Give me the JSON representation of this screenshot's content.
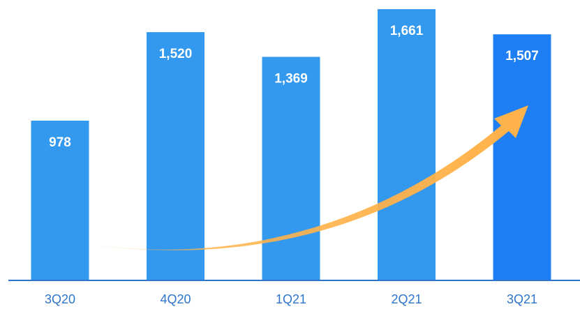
{
  "chart_data": {
    "type": "bar",
    "categories": [
      "3Q20",
      "4Q20",
      "1Q21",
      "2Q21",
      "3Q21"
    ],
    "values": [
      978,
      1520,
      1369,
      1661,
      1507
    ],
    "value_labels": [
      "978",
      "1,520",
      "1,369",
      "1,661",
      "1,507"
    ],
    "title": "",
    "xlabel": "",
    "ylabel": "",
    "ylim": [
      0,
      1700
    ],
    "grid": false,
    "legend": "none",
    "annotation": "upward-trend-arrow",
    "colors": {
      "bar": "#3399ee",
      "bar_highlight": "#1e7ff5",
      "axis": "#2e75c9",
      "tick_label": "#2e75c9",
      "value_label": "#ffffff",
      "trend_arrow": "#ffb24a"
    }
  }
}
